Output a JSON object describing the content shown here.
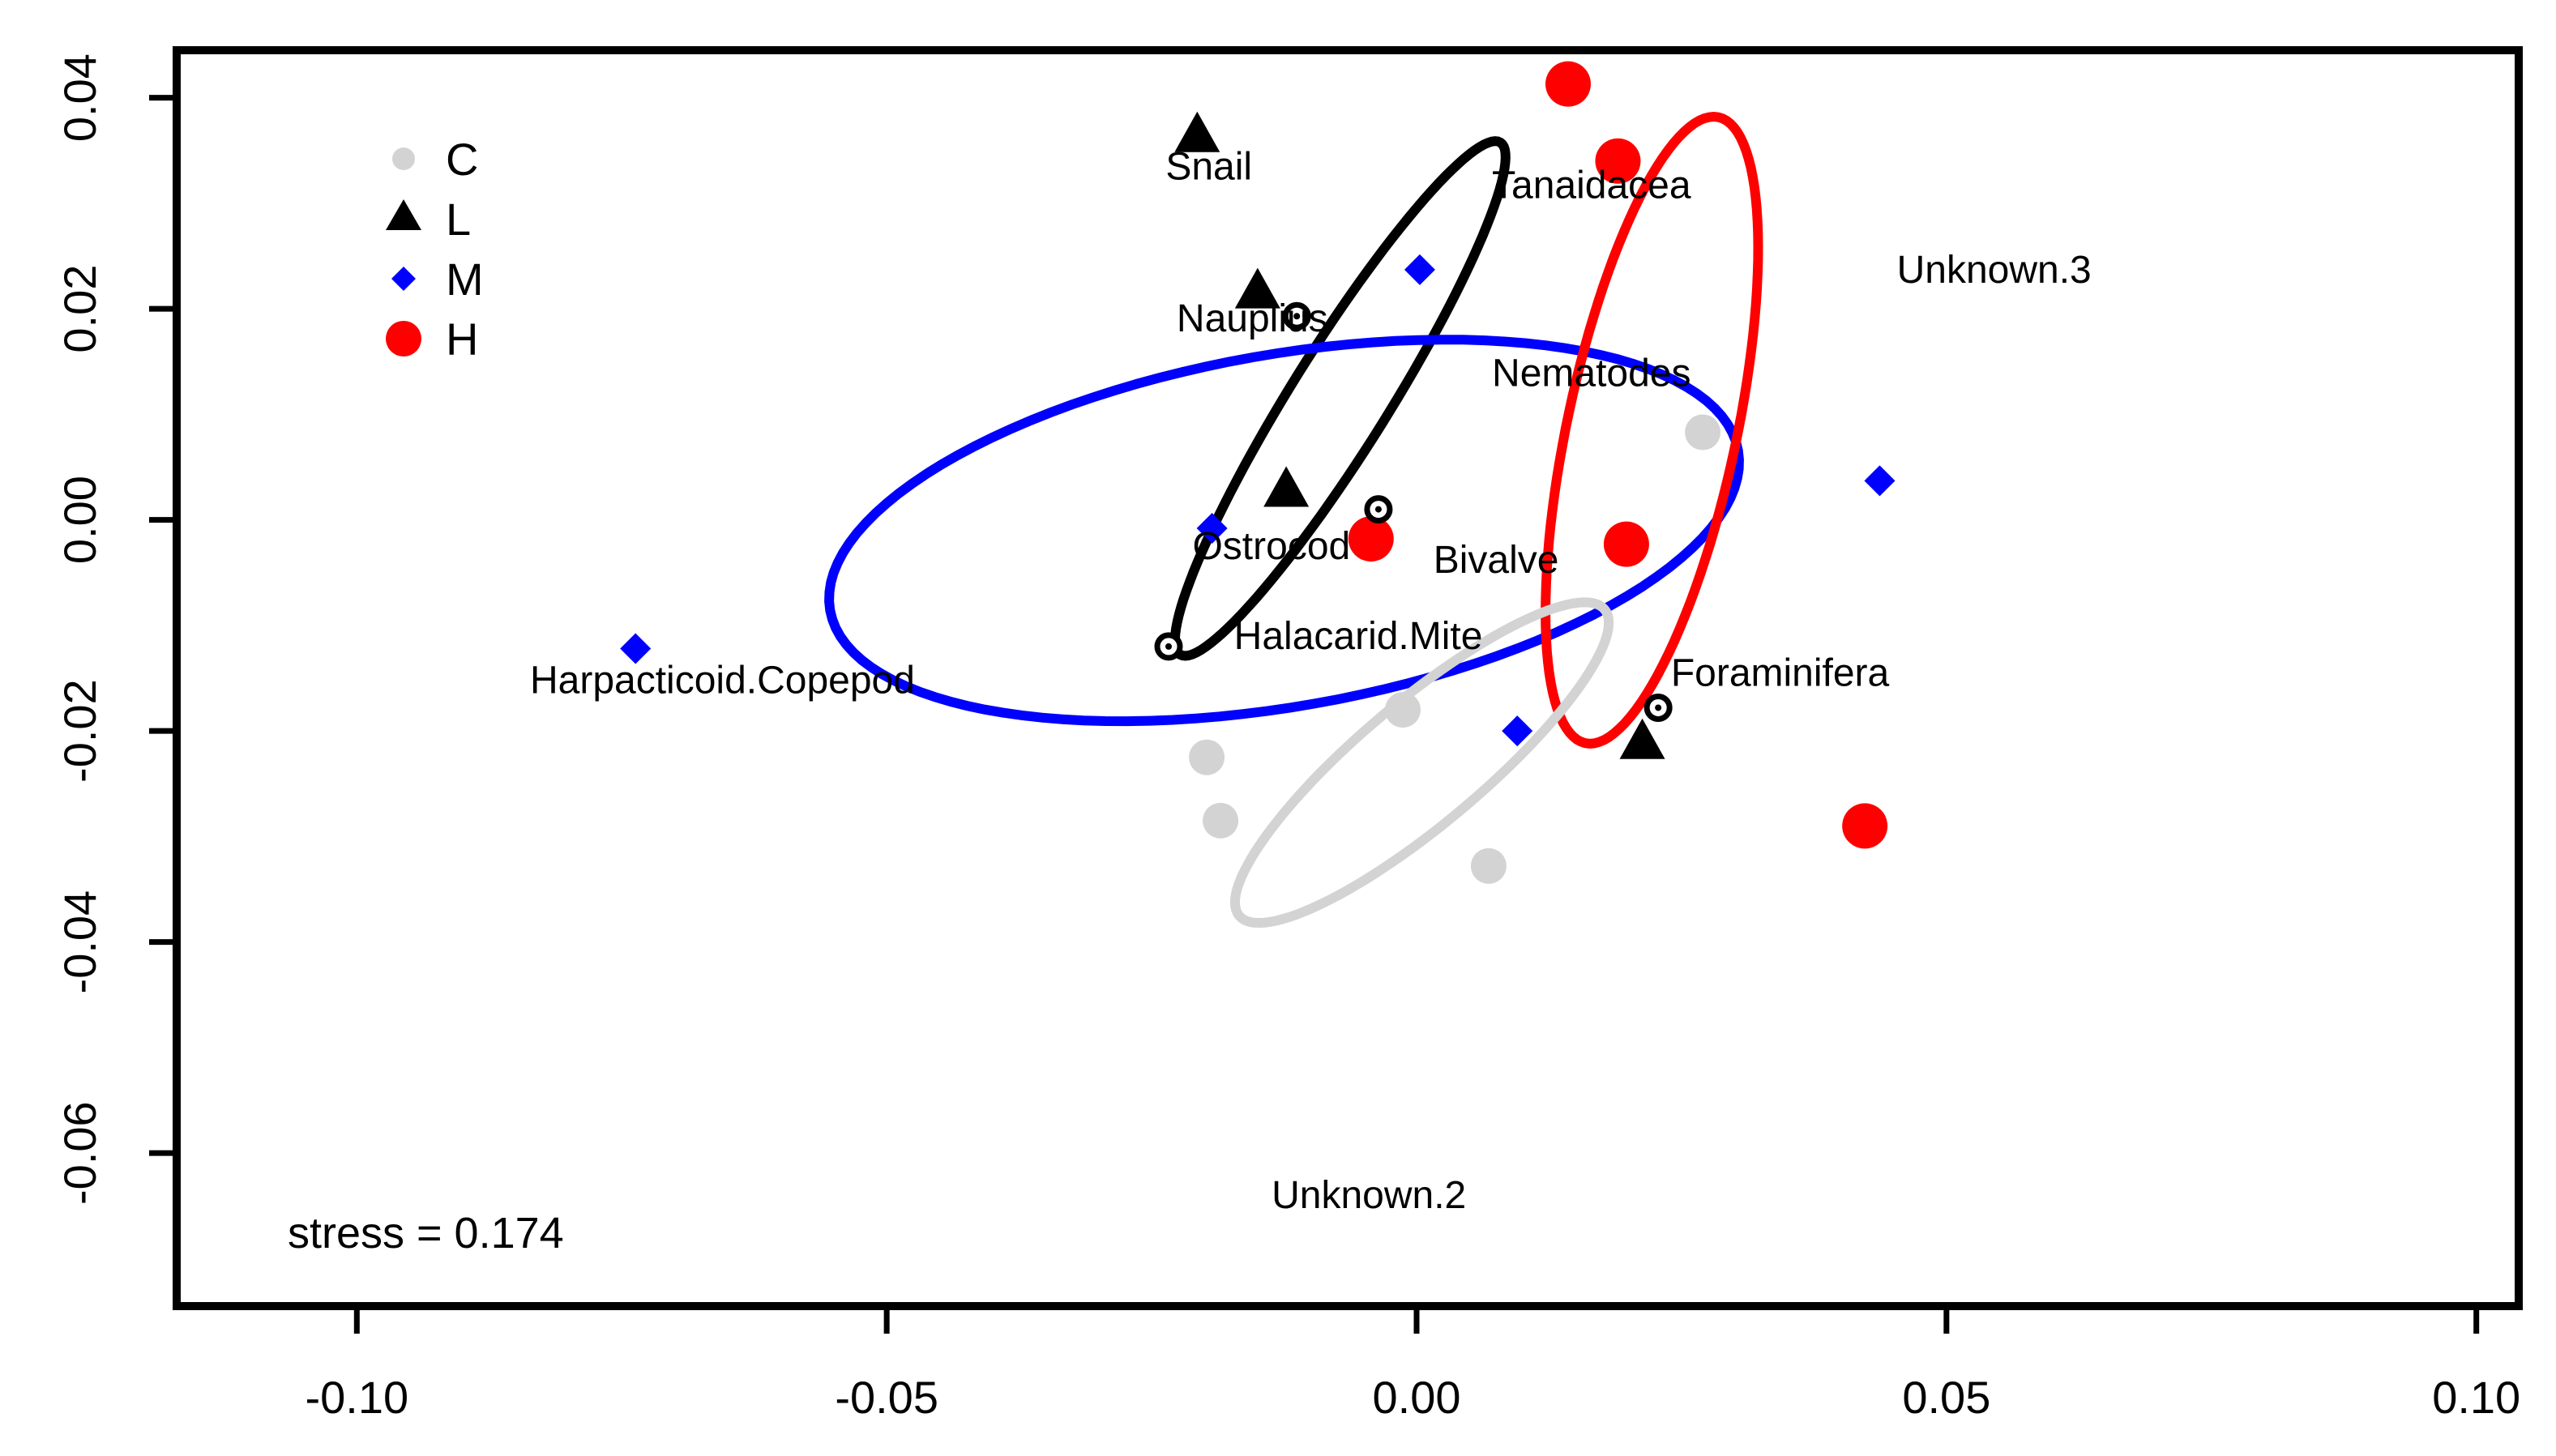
{
  "chart_data": {
    "type": "scatter",
    "title": "",
    "xlabel": "",
    "ylabel": "",
    "xlim": [
      -0.117,
      0.104
    ],
    "ylim": [
      -0.0745,
      0.0445
    ],
    "xticks": [
      -0.1,
      -0.05,
      0.0,
      0.05,
      0.1
    ],
    "xtick_labels": [
      "-0.10",
      "-0.05",
      "0.00",
      "0.05",
      "0.10"
    ],
    "yticks": [
      0.04,
      0.02,
      0.0,
      -0.02,
      -0.04,
      -0.06
    ],
    "ytick_labels": [
      "0.04",
      "0.02",
      "0.00",
      "-0.02",
      "-0.04",
      "-0.06"
    ],
    "annotation": "stress = 0.174",
    "legend": {
      "placement": "top-left",
      "entries": [
        {
          "label": "C",
          "shape": "circle-small",
          "color": "#d3d3d3"
        },
        {
          "label": "L",
          "shape": "triangle",
          "color": "#000000"
        },
        {
          "label": "M",
          "shape": "diamond",
          "color": "#0000ff"
        },
        {
          "label": "H",
          "shape": "circle-large",
          "color": "#ff0000"
        }
      ]
    },
    "series": [
      {
        "name": "C",
        "color": "#d3d3d3",
        "shape": "circle-small",
        "points": [
          [
            0.027,
            0.0083
          ],
          [
            -0.0013,
            -0.018
          ],
          [
            -0.0198,
            -0.0225
          ],
          [
            -0.0185,
            -0.0285
          ],
          [
            0.0068,
            -0.0328
          ]
        ]
      },
      {
        "name": "L",
        "color": "#000000",
        "shape": "triangle",
        "points": [
          [
            -0.0207,
            0.0363
          ],
          [
            -0.015,
            0.0215
          ],
          [
            -0.0123,
            0.0027
          ],
          [
            0.0213,
            -0.0212
          ]
        ]
      },
      {
        "name": "M",
        "color": "#0000ff",
        "shape": "diamond",
        "points": [
          [
            0.0003,
            0.0237
          ],
          [
            -0.0193,
            -0.0008
          ],
          [
            -0.0737,
            -0.0122
          ],
          [
            0.0095,
            -0.02
          ],
          [
            0.0437,
            0.0037
          ]
        ]
      },
      {
        "name": "H",
        "color": "#ff0000",
        "shape": "circle-large",
        "points": [
          [
            0.0143,
            0.0413
          ],
          [
            0.019,
            0.034
          ],
          [
            0.0198,
            -0.0023
          ],
          [
            -0.0043,
            -0.0018
          ],
          [
            0.0423,
            -0.029
          ]
        ]
      }
    ],
    "ellipses": [
      {
        "group": "L",
        "color": "#000000",
        "cx": -0.0072,
        "cy": 0.0115,
        "rx": 0.0285,
        "ry": 0.0046,
        "angle_deg": 58
      },
      {
        "group": "M",
        "color": "#0000ff",
        "cx": -0.0125,
        "cy": -0.001,
        "rx": 0.0435,
        "ry": 0.0166,
        "angle_deg": 10
      },
      {
        "group": "H",
        "color": "#ff0000",
        "cx": 0.0222,
        "cy": 0.0085,
        "rx": 0.0302,
        "ry": 0.008,
        "angle_deg": 78
      },
      {
        "group": "C",
        "color": "#d3d3d3",
        "cx": 0.0005,
        "cy": -0.023,
        "rx": 0.0225,
        "ry": 0.0058,
        "angle_deg": 40
      }
    ],
    "species": [
      {
        "label": "Snail",
        "x": -0.0196,
        "y": 0.0335,
        "marker": false
      },
      {
        "label": "Tanaidacea",
        "x": 0.0165,
        "y": 0.0317,
        "marker": false
      },
      {
        "label": "Unknown.3",
        "x": 0.0545,
        "y": 0.0237,
        "marker": false
      },
      {
        "label": "Nauplius",
        "x": -0.0155,
        "y": 0.0191,
        "marker": true,
        "mx": -0.0113,
        "my": 0.0193
      },
      {
        "label": "Nematodes",
        "x": 0.0165,
        "y": 0.0139,
        "marker": false
      },
      {
        "label": "Ostrocod",
        "x": -0.0137,
        "y": -0.0025,
        "marker": true,
        "mx": -0.0036,
        "my": 0.001
      },
      {
        "label": "Bivalve",
        "x": 0.0075,
        "y": -0.0038,
        "marker": false
      },
      {
        "label": "Halacarid.Mite",
        "x": -0.0055,
        "y": -0.011,
        "marker": true,
        "mx": -0.0234,
        "my": -0.012
      },
      {
        "label": "Harpacticoid.Copepod",
        "x": -0.0655,
        "y": -0.0152,
        "marker": false
      },
      {
        "label": "Foraminifera",
        "x": 0.0343,
        "y": -0.0145,
        "marker": true,
        "mx": 0.0228,
        "my": -0.0178
      },
      {
        "label": "Unknown.2",
        "x": -0.0045,
        "y": -0.064,
        "marker": false
      }
    ]
  }
}
